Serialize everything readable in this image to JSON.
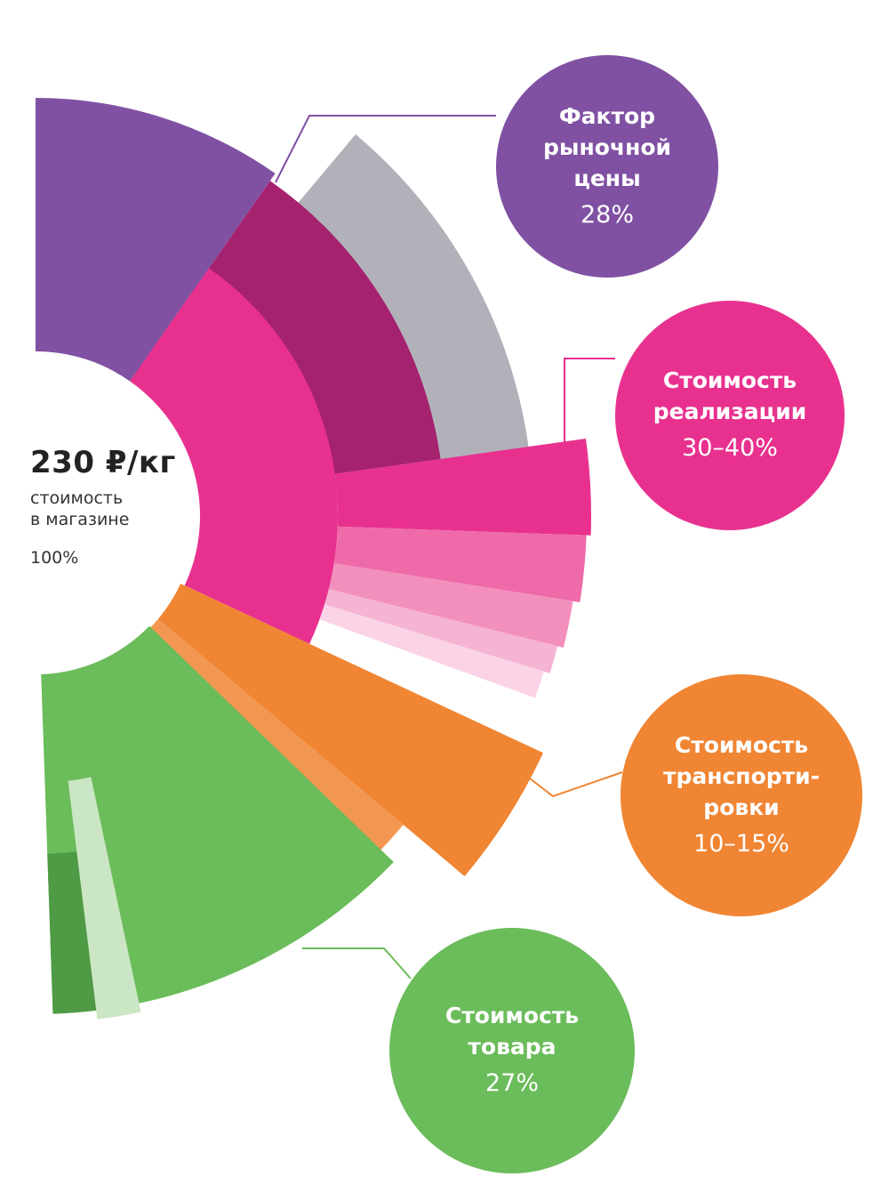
{
  "center": {
    "price": "230 ₽/кг",
    "desc_line1": "стоимость",
    "desc_line2": "в магазине",
    "percent": "100%"
  },
  "bubbles": [
    {
      "title_lines": [
        "Фактор",
        "рыночной",
        "цены"
      ],
      "value": "28%",
      "color": "#8051a3"
    },
    {
      "title_lines": [
        "Стоимость",
        "реализации"
      ],
      "value": "30–40%",
      "color": "#e8318f"
    },
    {
      "title_lines": [
        "Стоимость",
        "транспорти-",
        "ровки"
      ],
      "value": "10–15%",
      "color": "#f08533"
    },
    {
      "title_lines": [
        "Стоимость",
        "товара"
      ],
      "value": "27%",
      "color": "#6bbc5a"
    }
  ],
  "chart_data": {
    "type": "pie",
    "total_label": "230 ₽/кг",
    "total_percent": 100,
    "series": [
      {
        "name": "Фактор рыночной цены",
        "percent": 28,
        "color": "#8051a3"
      },
      {
        "name": "Стоимость реализации",
        "percent": "30–40",
        "color": "#e8318f"
      },
      {
        "name": "Стоимость транспортировки",
        "percent": "10–15",
        "color": "#f08533"
      },
      {
        "name": "Стоимость товара",
        "percent": 27,
        "color": "#6bbc5a"
      }
    ]
  }
}
